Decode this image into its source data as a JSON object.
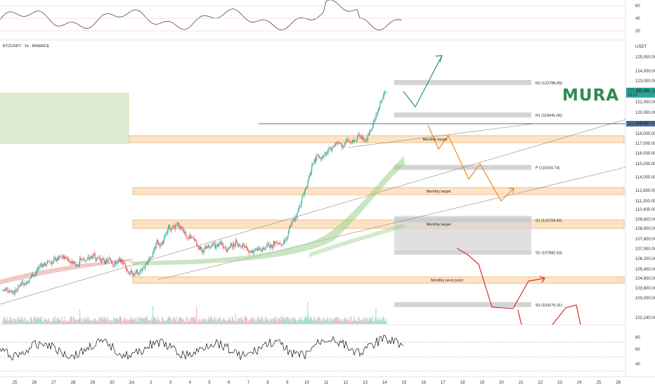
{
  "symbol": "BTCUSDT · 1h · BINANCE",
  "currency": "USDT",
  "brand": {
    "logo_text": "MURA",
    "color": "#2f8a52"
  },
  "colors": {
    "up": "#26a69a",
    "down": "#ef5350",
    "rsi": "#111111",
    "zone_fill": "#fbe4c6",
    "zone_border": "#f0b26b",
    "pivot_fill": "#d9d9d9",
    "green_box": "#d8e8c8",
    "arrow_green": "#1e9e5e",
    "arrow_orange": "#f08a1c",
    "arrow_red": "#d32f2f",
    "current_line": "#4a6fa5",
    "price_badge": "#26a69a"
  },
  "price_axis_ticks": [
    "125,000.00",
    "124,000.00",
    "123,000.00",
    "122,000.00",
    "121,000.00",
    "120,000.00",
    "119,000.00",
    "118,000.00",
    "117,000.00",
    "116,000.00",
    "115,000.00",
    "114,000.00",
    "112,800.00",
    "111,200.00",
    "110,400.00",
    "109,600.00",
    "108,800.00",
    "107,800.00",
    "107,000.00",
    "106,200.00",
    "105,400.00",
    "104,600.00",
    "103,800.00",
    "103,000.00",
    "102,240.00"
  ],
  "current_price_tag": [
    "121,995.43",
    "09:47"
  ],
  "reference_price_tag": "118,000.00",
  "top_osc_ticks": [
    "60",
    "40",
    "20"
  ],
  "rsi_ticks": [
    "80",
    "60",
    "40"
  ],
  "time_axis_labels": [
    "25",
    "26",
    "27",
    "28",
    "29",
    "30",
    "Jul",
    "2",
    "3",
    "4",
    "5",
    "6",
    "7",
    "8",
    "9",
    "10",
    "11",
    "12",
    "13",
    "14",
    "15",
    "16",
    "17",
    "18",
    "19",
    "20",
    "21",
    "22",
    "23",
    "24",
    "25",
    "26"
  ],
  "zone_labels": [
    {
      "id": "mt1",
      "text": "Monthly target"
    },
    {
      "id": "mt2",
      "text": "Monthly target"
    },
    {
      "id": "mt3",
      "text": "Monthly target"
    },
    {
      "id": "mpp",
      "text": "Monthly pivot point"
    }
  ],
  "pivot_labels": [
    {
      "id": "r2",
      "text": "R2 (122786.85)"
    },
    {
      "id": "r1",
      "text": "R1 (119941.06)"
    },
    {
      "id": "p",
      "text": "P (115334.74)"
    },
    {
      "id": "s1",
      "text": "S1 (110728.42)"
    },
    {
      "id": "s2",
      "text": "S2 (107882.63)"
    },
    {
      "id": "s3",
      "text": "S3 (103276.31)"
    }
  ],
  "chart_data": {
    "type": "candlestick",
    "title": "BTCUSDT · 1h · BINANCE",
    "y_unit": "USDT",
    "x_dates": [
      "25",
      "26",
      "27",
      "28",
      "29",
      "30",
      "Jul",
      "2",
      "3",
      "4",
      "5",
      "6",
      "7",
      "8",
      "9",
      "10",
      "11",
      "12",
      "13",
      "14"
    ],
    "approx_daily_close": [
      105200,
      106900,
      107300,
      107200,
      107400,
      107100,
      105900,
      108900,
      110300,
      108600,
      108300,
      108700,
      108300,
      108800,
      110800,
      116000,
      117400,
      117700,
      118900,
      121995
    ],
    "pivot_levels": {
      "R2": 122786.85,
      "R1": 119941.06,
      "P": 115334.74,
      "S1": 110728.42,
      "S2": 107882.63,
      "S3": 103276.31
    },
    "current_price": 121995.43,
    "indicators": [
      "Volume",
      "RSI",
      "Oscillator"
    ],
    "rsi_levels": [
      80,
      60,
      40
    ],
    "grid": false
  }
}
